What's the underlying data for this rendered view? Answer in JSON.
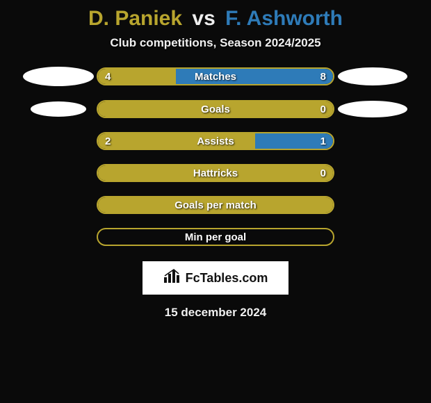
{
  "title": {
    "player1": "D. Paniek",
    "vs": "vs",
    "player2": "F. Ashworth"
  },
  "subtitle": "Club competitions, Season 2024/2025",
  "colors": {
    "player1": "#b8a52e",
    "player2": "#2e7bb8",
    "background": "#0a0a0a",
    "bar_border": "#b8a52e",
    "text": "#ffffff",
    "text_shadow": "rgba(0,0,0,0.85)"
  },
  "logos": {
    "left_row0": {
      "w": 102,
      "h": 28
    },
    "right_row0": {
      "w": 100,
      "h": 26
    },
    "left_row1": {
      "w": 80,
      "h": 22
    },
    "right_row1": {
      "w": 100,
      "h": 24
    }
  },
  "bars": {
    "track_width": 342,
    "track_height": 26,
    "border_radius": 14,
    "items": [
      {
        "label": "Matches",
        "left_val": "4",
        "right_val": "8",
        "left_pct": 33,
        "right_pct": 67,
        "show_vals": true
      },
      {
        "label": "Goals",
        "left_val": "",
        "right_val": "0",
        "left_pct": 100,
        "right_pct": 0,
        "show_vals": true
      },
      {
        "label": "Assists",
        "left_val": "2",
        "right_val": "1",
        "left_pct": 67,
        "right_pct": 33,
        "show_vals": true
      },
      {
        "label": "Hattricks",
        "left_val": "",
        "right_val": "0",
        "left_pct": 100,
        "right_pct": 0,
        "show_vals": true
      },
      {
        "label": "Goals per match",
        "left_val": "",
        "right_val": "",
        "left_pct": 100,
        "right_pct": 0,
        "show_vals": false
      },
      {
        "label": "Min per goal",
        "left_val": "",
        "right_val": "",
        "left_pct": 0,
        "right_pct": 0,
        "show_vals": false
      }
    ]
  },
  "branding": {
    "label": "FcTables.com",
    "icon_name": "bar-chart-icon"
  },
  "date": "15 december 2024"
}
